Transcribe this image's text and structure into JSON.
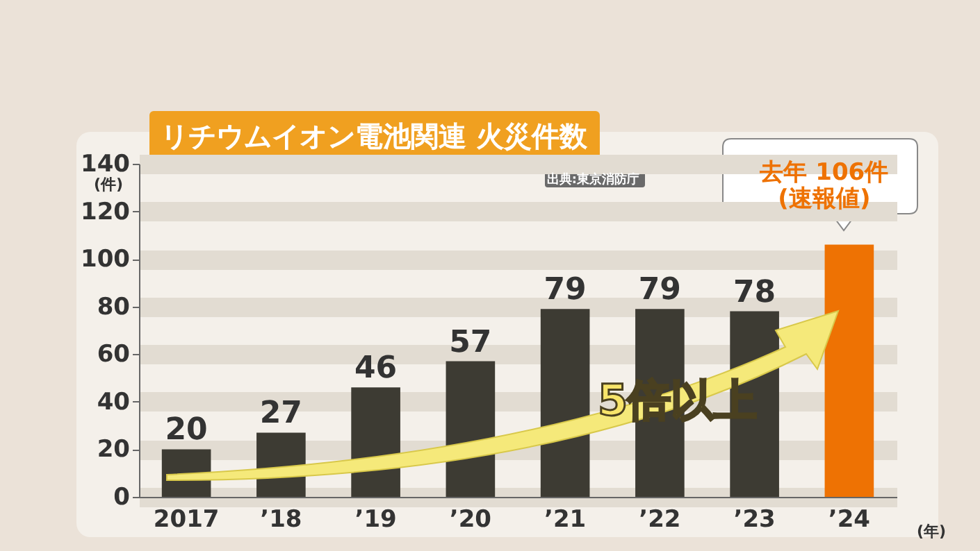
{
  "chart_data": {
    "type": "bar",
    "title": "リチウムイオン電池関連 火災件数",
    "categories": [
      "2017",
      "’18",
      "’19",
      "’20",
      "’21",
      "’22",
      "’23",
      "’24"
    ],
    "values": [
      20,
      27,
      46,
      57,
      79,
      79,
      78,
      106
    ],
    "colors": [
      "#3d3b33",
      "#3d3b33",
      "#3d3b33",
      "#3d3b33",
      "#3d3b33",
      "#3d3b33",
      "#3d3b33",
      "#ee7203"
    ],
    "value_labels": [
      "20",
      "27",
      "46",
      "57",
      "79",
      "79",
      "78",
      null
    ],
    "ylabel": "(件)",
    "xlabel": "(年)",
    "ylim": [
      0,
      140
    ],
    "yticks": [
      0,
      20,
      40,
      60,
      80,
      100,
      120,
      140
    ],
    "grid": "y",
    "annotations": [
      {
        "text": "去年 106件\n(速報値)",
        "x": "’24",
        "y": 106
      },
      "出典:東京消防庁",
      "5倍以上"
    ]
  }
}
